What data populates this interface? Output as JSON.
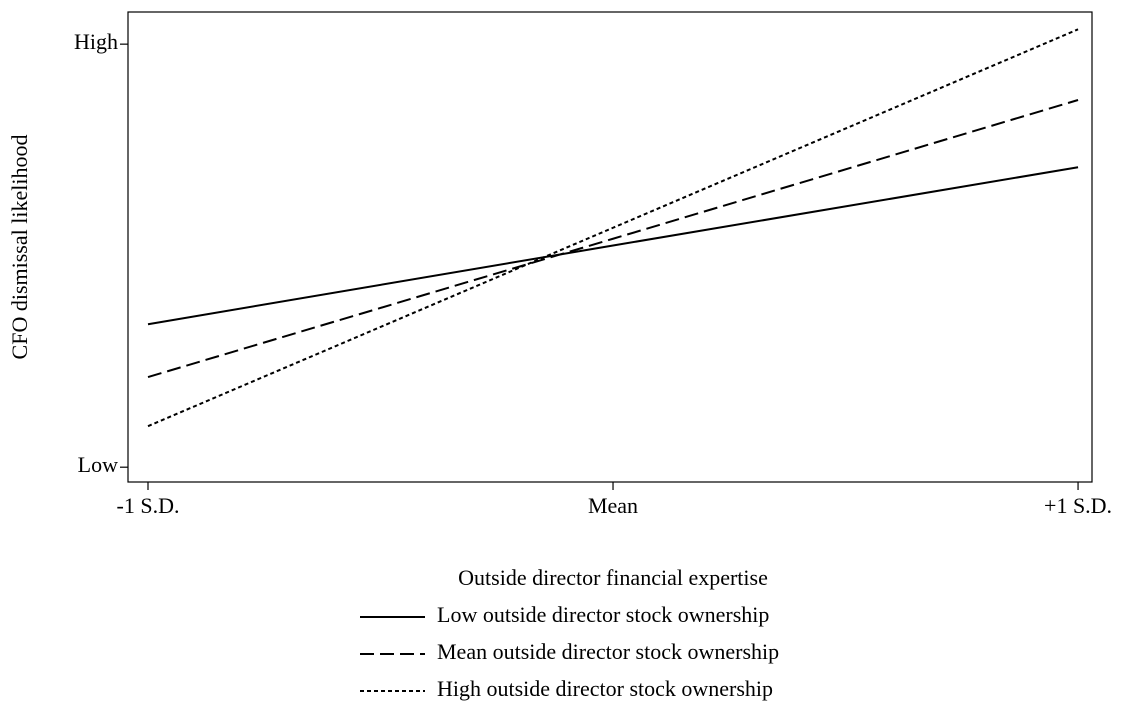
{
  "chart_data": {
    "type": "line",
    "xlabel": "Outside director financial expertise",
    "ylabel": "CFO dismissal likelihood",
    "x": [
      -1,
      0,
      1
    ],
    "xlim": [
      -1.043,
      1.03
    ],
    "xticks": [
      {
        "value": -1,
        "label": "-1 S.D."
      },
      {
        "value": 0,
        "label": "Mean"
      },
      {
        "value": 1,
        "label": "+1 S.D."
      }
    ],
    "ylim": [
      -0.035,
      1.076
    ],
    "yticks": [
      {
        "value": 0,
        "label": "Low"
      },
      {
        "value": 1,
        "label": "High"
      }
    ],
    "legend": "bottom",
    "series": [
      {
        "name": "Low outside director stock ownership",
        "color": "#000000",
        "dash": "solid",
        "values": [
          0.338,
          0.524,
          0.709
        ]
      },
      {
        "name": "Mean outside director stock ownership",
        "color": "#000000",
        "dash": "dashed",
        "values": [
          0.213,
          0.54,
          0.868
        ]
      },
      {
        "name": "High outside director stock ownership",
        "color": "#000000",
        "dash": "dotted",
        "values": [
          0.097,
          0.566,
          1.035
        ]
      }
    ]
  }
}
